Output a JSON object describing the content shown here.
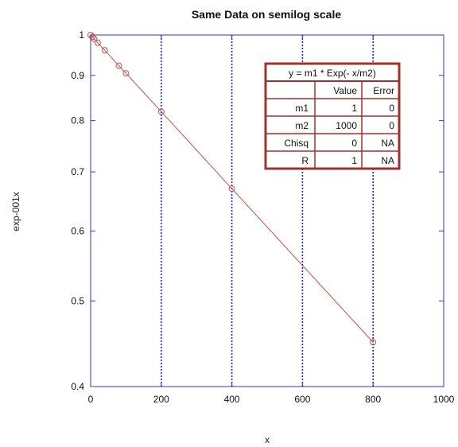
{
  "chart_data": {
    "type": "scatter",
    "title": "Same Data on semilog scale",
    "xlabel": "x",
    "ylabel": "exp-001x",
    "xlim": [
      0,
      1000
    ],
    "ylim": [
      0.4,
      1
    ],
    "yscale": "log",
    "x_ticks": [
      "0",
      "200",
      "400",
      "600",
      "800",
      "1000"
    ],
    "y_ticks": [
      "0.4",
      "0.5",
      "0.6",
      "0.7",
      "0.8",
      "0.9",
      "1"
    ],
    "y_tick_values": [
      0.4,
      0.5,
      0.6,
      0.7,
      0.8,
      0.9,
      1.0
    ],
    "x_gridlines": [
      200,
      400,
      600,
      800
    ],
    "grid": "vertical dotted",
    "series": [
      {
        "x": [
          0,
          5,
          10,
          20,
          40,
          80,
          100,
          200,
          400,
          800
        ],
        "y": [
          1.0,
          0.995,
          0.99,
          0.98,
          0.961,
          0.923,
          0.905,
          0.819,
          0.67,
          0.449
        ],
        "color": "#c0504d",
        "line": true,
        "marker": "circle"
      }
    ],
    "fit_table": {
      "equation": "y = m1 * Exp(- x/m2)",
      "headers": [
        "",
        "Value",
        "Error"
      ],
      "rows": [
        [
          "m1",
          "1",
          "0"
        ],
        [
          "m2",
          "1000",
          "0"
        ],
        [
          "Chisq",
          "0",
          "NA"
        ],
        [
          "R",
          "1",
          "NA"
        ]
      ],
      "border_color": "#a0302c"
    }
  }
}
